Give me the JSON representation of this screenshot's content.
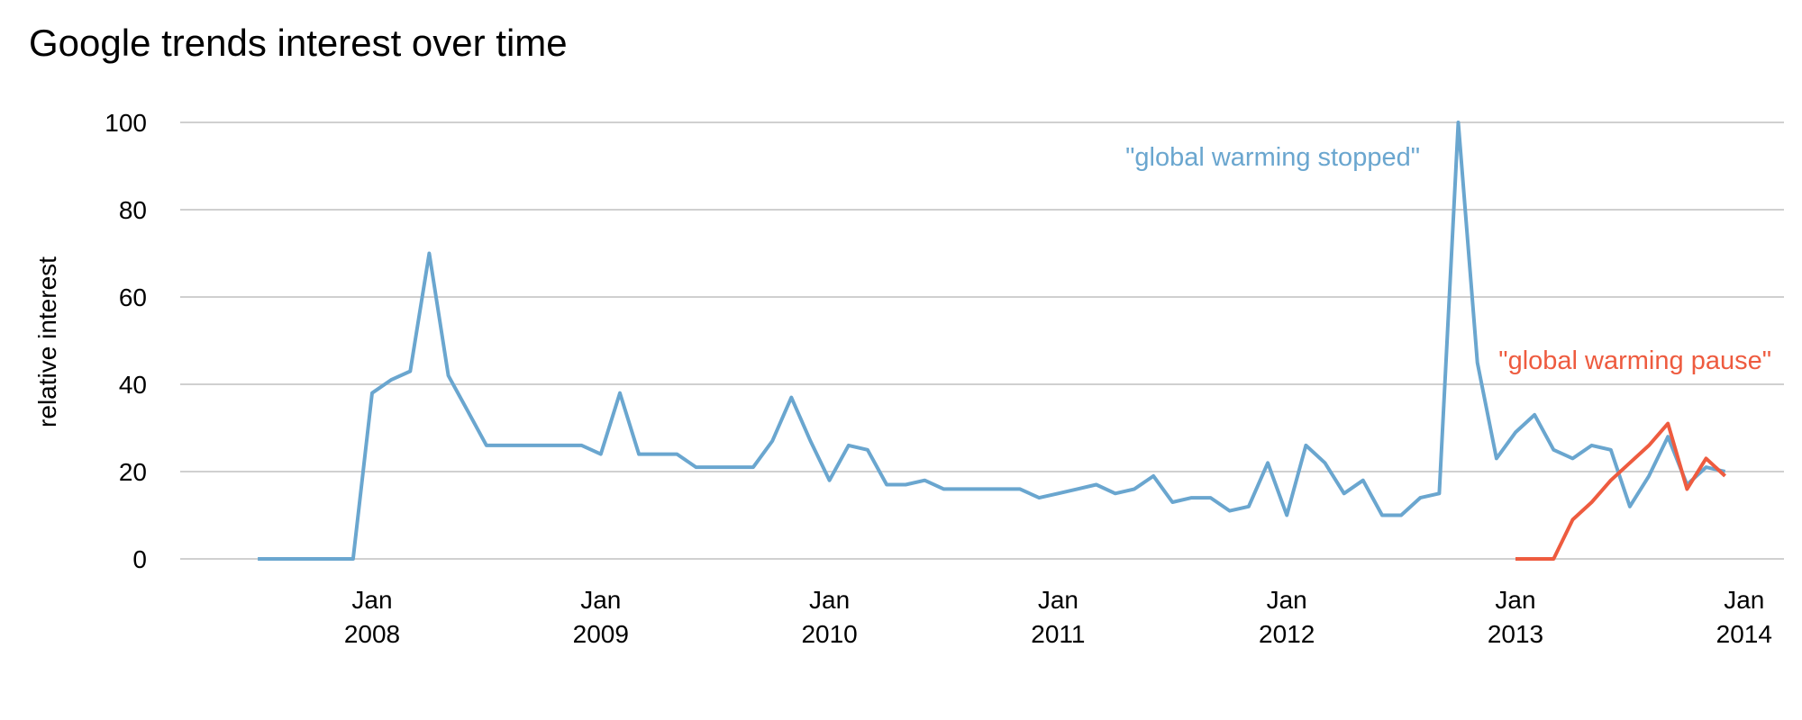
{
  "chart_data": {
    "type": "line",
    "title": "Google trends interest over time",
    "xlabel": "",
    "ylabel": "relative interest",
    "ylim": [
      0,
      100
    ],
    "yticks": [
      0,
      20,
      40,
      60,
      80,
      100
    ],
    "xticks": [
      {
        "date": "2008-01",
        "line1": "Jan",
        "line2": "2008"
      },
      {
        "date": "2009-01",
        "line1": "Jan",
        "line2": "2009"
      },
      {
        "date": "2010-01",
        "line1": "Jan",
        "line2": "2010"
      },
      {
        "date": "2011-01",
        "line1": "Jan",
        "line2": "2011"
      },
      {
        "date": "2012-01",
        "line1": "Jan",
        "line2": "2012"
      },
      {
        "date": "2013-01",
        "line1": "Jan",
        "line2": "2013"
      },
      {
        "date": "2014-01",
        "line1": "Jan",
        "line2": "2014"
      }
    ],
    "grid": true,
    "series": [
      {
        "name": "\"global warming stopped\"",
        "color": "#6aa6cf",
        "start": "2007-07",
        "frequency": "monthly",
        "values": [
          0,
          0,
          0,
          0,
          0,
          0,
          38,
          41,
          43,
          70,
          42,
          34,
          26,
          26,
          26,
          26,
          26,
          26,
          24,
          38,
          24,
          24,
          24,
          21,
          21,
          21,
          21,
          27,
          37,
          27,
          18,
          26,
          25,
          17,
          17,
          18,
          16,
          16,
          16,
          16,
          16,
          14,
          15,
          16,
          17,
          15,
          16,
          19,
          13,
          14,
          14,
          11,
          12,
          22,
          10,
          26,
          22,
          15,
          18,
          10,
          10,
          14,
          15,
          100,
          45,
          23,
          29,
          33,
          25,
          23,
          26,
          25,
          12,
          19,
          28,
          17,
          21,
          20
        ]
      },
      {
        "name": "\"global warming pause\"",
        "color": "#ee5b3f",
        "start": "2013-01",
        "frequency": "monthly",
        "values": [
          0,
          0,
          0,
          9,
          13,
          18,
          22,
          26,
          31,
          16,
          23,
          19
        ]
      }
    ]
  }
}
